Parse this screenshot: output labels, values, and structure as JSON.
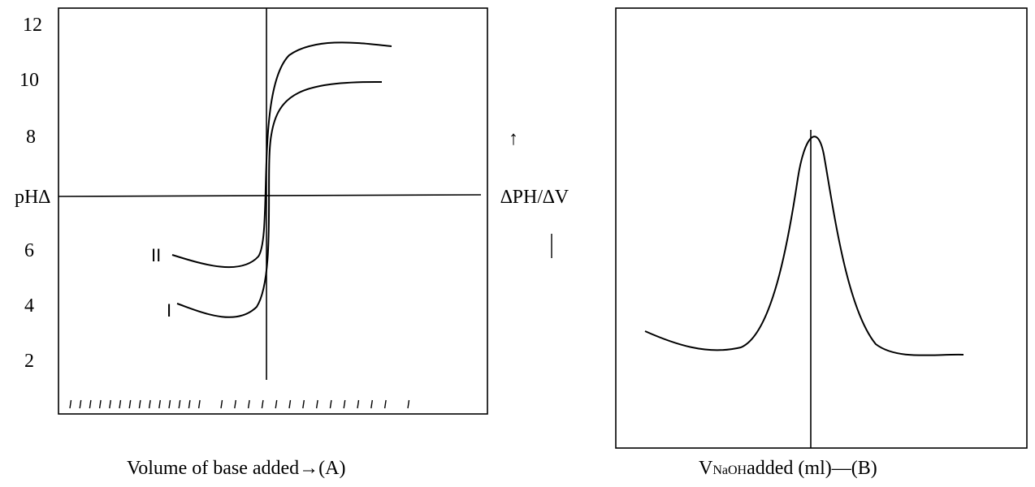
{
  "chart_data": [
    {
      "type": "line",
      "panel": "A",
      "y_tick_labels": [
        "12",
        "10",
        "8",
        "6",
        "4",
        "2"
      ],
      "y_axis_label": "pH∆",
      "x_axis_label": "Volume of base added→(A)",
      "series": [
        {
          "name": "I",
          "description_shape": "starts near pH 4, rises steeply through equivalence, levels near 10"
        },
        {
          "name": "II",
          "description_shape": "starts near pH 6, rises steeply through equivalence, levels near 11"
        }
      ]
    },
    {
      "type": "line",
      "panel": "B",
      "y_axis_label": "∆PH/∆V",
      "y_arrow_glyph": "↑",
      "y_bar_glyph": "│",
      "x_axis_label_main": "V",
      "x_axis_label_sub": "NaOH",
      "x_axis_label_rest": "added (ml)—(B)"
    }
  ]
}
